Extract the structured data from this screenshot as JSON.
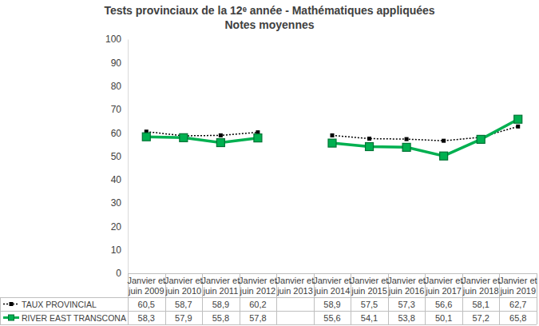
{
  "chart_data": {
    "type": "line",
    "title": "Tests provinciaux de la 12ᵉ année - Mathématiques appliquées",
    "subtitle": "Notes moyennes",
    "categories": [
      "Janvier et juin 2009",
      "Janvier et juin 2010",
      "Janvier et juin 2011",
      "Janvier et juin 2012",
      "Janvier et juin 2013",
      "Janvier et juin 2014",
      "Janvier et juin 2015",
      "Janvier et juin 2016",
      "Janvier et juin 2017",
      "Janvier et juin 2018",
      "Janvier et juin 2019"
    ],
    "series": [
      {
        "name": "TAUX PROVINCIAL",
        "color": "#000000",
        "marker": "square",
        "line_style": "dotted",
        "values": [
          60.5,
          58.7,
          58.9,
          60.2,
          null,
          58.9,
          57.5,
          57.3,
          56.6,
          58.1,
          62.7
        ],
        "value_labels": [
          "60,5",
          "58,7",
          "58,9",
          "60,2",
          null,
          "58,9",
          "57,5",
          "57,3",
          "56,6",
          "58,1",
          "62,7"
        ]
      },
      {
        "name": "RIVER EAST TRANSCONA",
        "color": "#00b050",
        "marker": "square",
        "line_style": "solid",
        "values": [
          58.3,
          57.9,
          55.8,
          57.8,
          null,
          55.6,
          54.1,
          53.8,
          50.1,
          57.2,
          65.8
        ],
        "value_labels": [
          "58,3",
          "57,9",
          "55,8",
          "57,8",
          null,
          "55,6",
          "54,1",
          "53,8",
          "50,1",
          "57,2",
          "65,8"
        ]
      }
    ],
    "ylim": [
      0,
      100
    ],
    "yticks": [
      0,
      10,
      20,
      30,
      40,
      50,
      60,
      70,
      80,
      90,
      100
    ],
    "grid": false
  }
}
